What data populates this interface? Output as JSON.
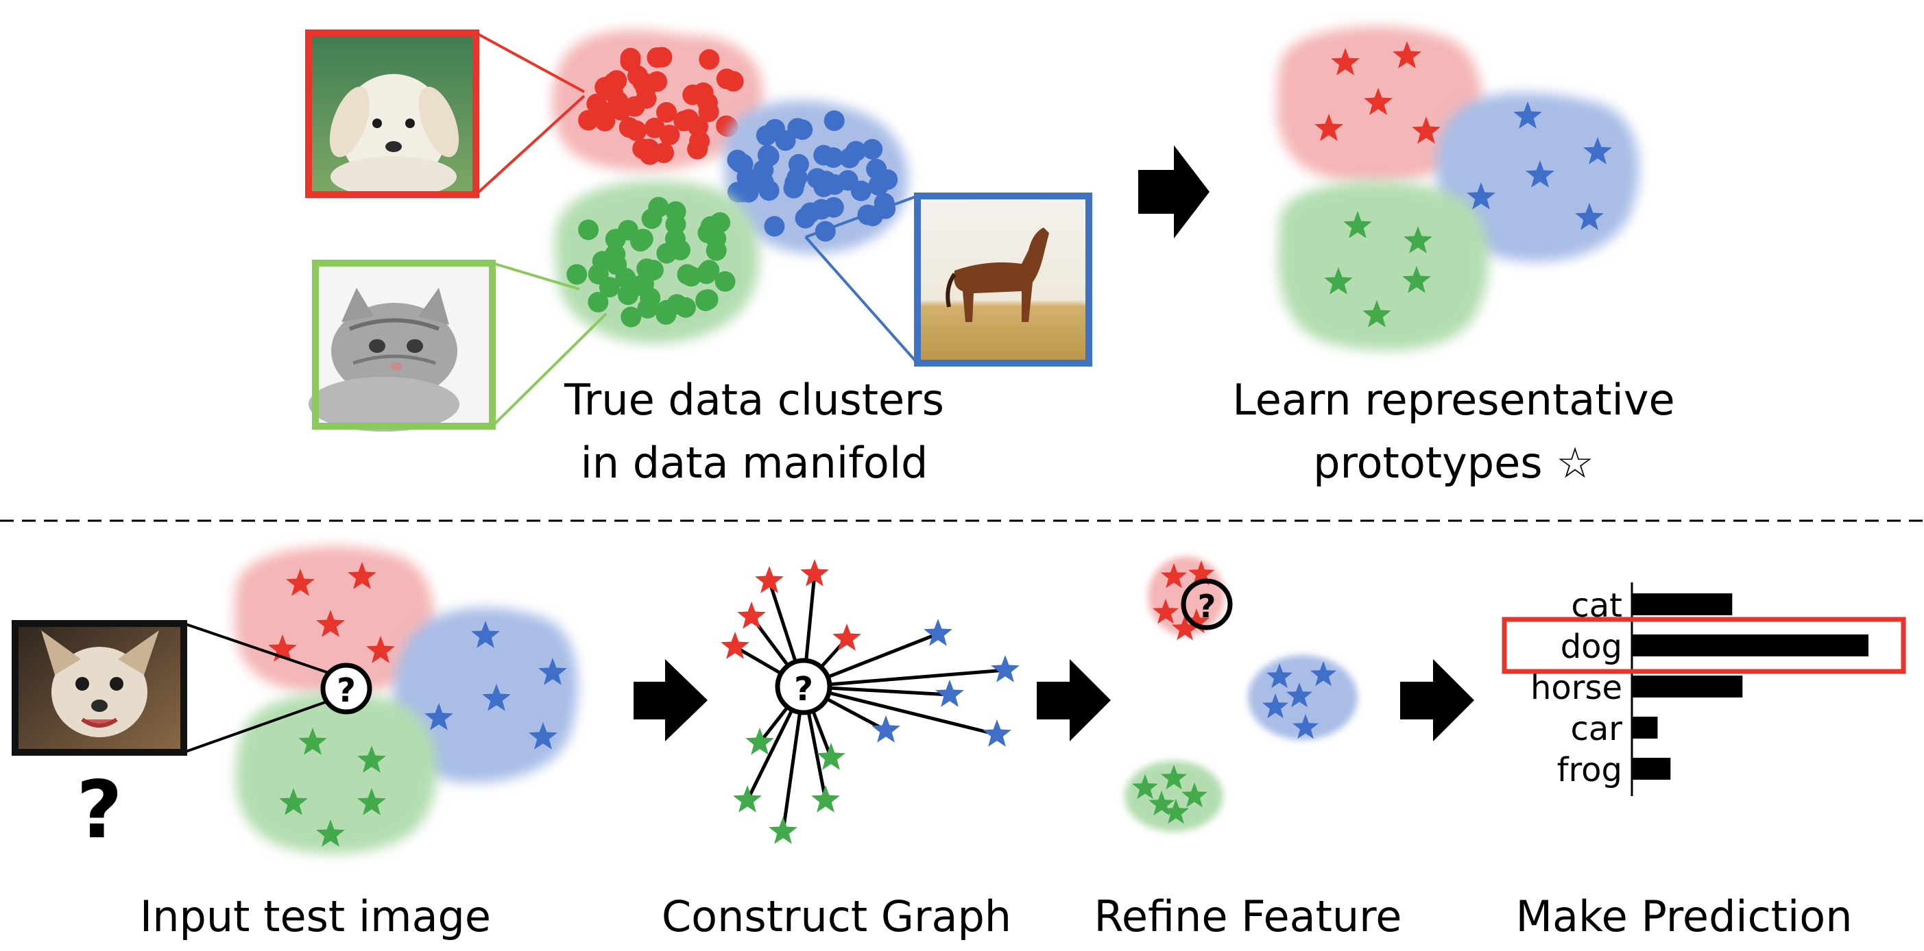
{
  "top": {
    "caption_clusters": [
      "True data clusters",
      "in data manifold"
    ],
    "caption_prototypes": [
      "Learn representative",
      "prototypes ☆"
    ]
  },
  "bottom": {
    "steps": [
      "Input test image",
      "Construct Graph",
      "Refine Feature",
      "Make Prediction"
    ],
    "question_mark": "?",
    "test_node_mark": "?"
  },
  "chart_data": {
    "type": "bar",
    "orientation": "horizontal",
    "categories": [
      "cat",
      "dog",
      "horse",
      "car",
      "frog"
    ],
    "values": [
      0.39,
      0.92,
      0.43,
      0.1,
      0.15
    ],
    "highlighted": "dog",
    "xlim": [
      0,
      1
    ]
  },
  "colors": {
    "red": "#e8352b",
    "blue": "#3f6fc9",
    "green": "#43aa4b",
    "red_cluster": "#f4b6b6",
    "blue_cluster": "#a9bde6",
    "green_cluster": "#b3ddb0",
    "highlight_box": "#e8352b",
    "frame_dog": "#e8352b",
    "frame_cat": "#8cc95d",
    "frame_horse": "#3f72c0",
    "frame_test": "#111111"
  },
  "icons": {
    "dog_photo": "puppy-photo-icon",
    "cat_photo": "kitten-photo-icon",
    "horse_photo": "horse-photo-icon",
    "test_photo": "chihuahua-photo-icon",
    "arrow": "right-arrow-icon",
    "prototype": "star-icon"
  }
}
